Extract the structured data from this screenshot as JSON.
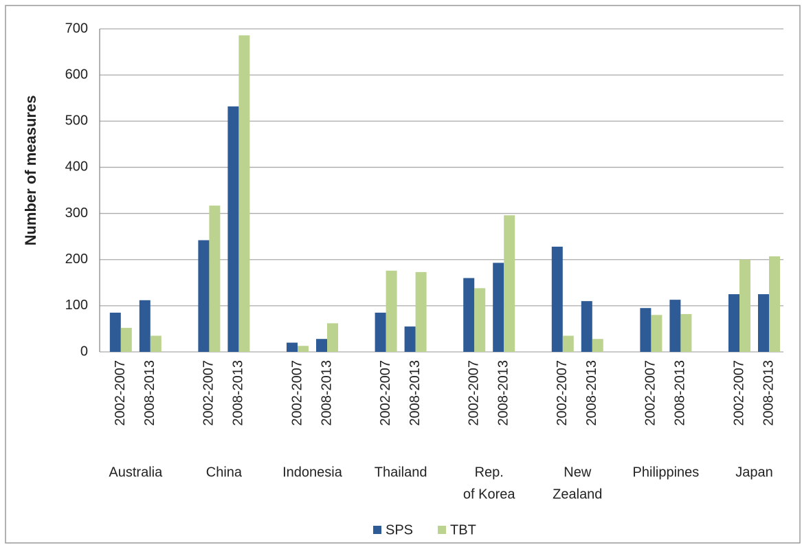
{
  "chart_data": {
    "type": "bar",
    "y_label": "Number of measures",
    "groups": [
      [
        "Australia"
      ],
      [
        "China"
      ],
      [
        "Indonesia"
      ],
      [
        "Thailand"
      ],
      [
        "Rep.",
        "of Korea"
      ],
      [
        "New",
        "Zealand"
      ],
      [
        "Philippines"
      ],
      [
        "Japan"
      ]
    ],
    "categories": [
      "2002-2007",
      "2008-2013",
      "2002-2007",
      "2008-2013",
      "2002-2007",
      "2008-2013",
      "2002-2007",
      "2008-2013",
      "2002-2007",
      "2008-2013",
      "2002-2007",
      "2008-2013",
      "2002-2007",
      "2008-2013",
      "2002-2007",
      "2008-2013"
    ],
    "series": [
      {
        "name": "SPS",
        "color": "#2e5b96",
        "values": [
          85,
          112,
          242,
          532,
          20,
          28,
          85,
          55,
          160,
          193,
          228,
          110,
          95,
          113,
          125,
          125
        ]
      },
      {
        "name": "TBT",
        "color": "#bcd38f",
        "values": [
          52,
          35,
          317,
          686,
          13,
          62,
          176,
          173,
          138,
          296,
          35,
          28,
          80,
          82,
          200,
          207
        ]
      }
    ],
    "ylim": [
      0,
      700
    ],
    "yticks": [
      0,
      100,
      200,
      300,
      400,
      500,
      600,
      700
    ],
    "grid": true,
    "legend": "bottom"
  }
}
